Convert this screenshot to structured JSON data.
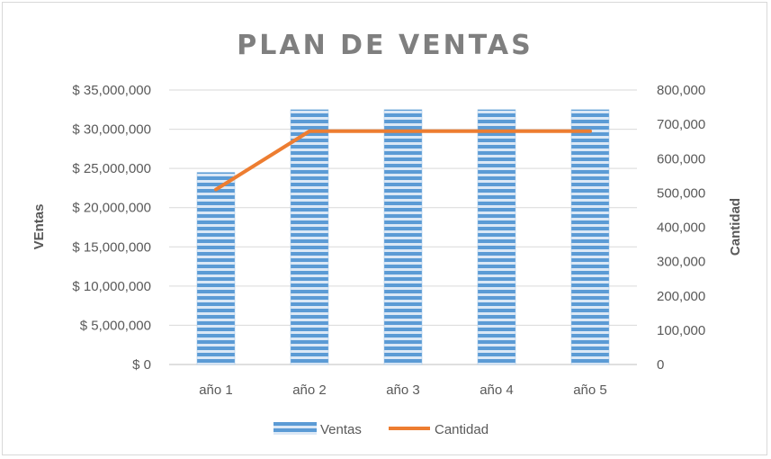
{
  "chart_data": {
    "type": "bar",
    "title": "PLAN DE VENTAS",
    "categories": [
      "año 1",
      "año 2",
      "año 3",
      "año 4",
      "año 5"
    ],
    "series": [
      {
        "name": "Ventas",
        "type": "bar",
        "axis": "left",
        "values": [
          24500000,
          32500000,
          32500000,
          32500000,
          32500000
        ],
        "color": "#5b9bd5"
      },
      {
        "name": "Cantidad",
        "type": "line",
        "axis": "right",
        "values": [
          510000,
          680000,
          680000,
          680000,
          680000
        ],
        "color": "#ed7d31"
      }
    ],
    "ylabel": "VEntas",
    "y2label": "Cantidad",
    "ylim": [
      0,
      35000000
    ],
    "y2lim": [
      0,
      800000
    ],
    "yticks": [
      "$ 0",
      "$ 5,000,000",
      "$ 10,000,000",
      "$ 15,000,000",
      "$ 20,000,000",
      "$ 25,000,000",
      "$ 30,000,000",
      "$ 35,000,000"
    ],
    "y2ticks": [
      "0",
      "100,000",
      "200,000",
      "300,000",
      "400,000",
      "500,000",
      "600,000",
      "700,000",
      "800,000"
    ],
    "grid": true,
    "legend_position": "bottom"
  }
}
